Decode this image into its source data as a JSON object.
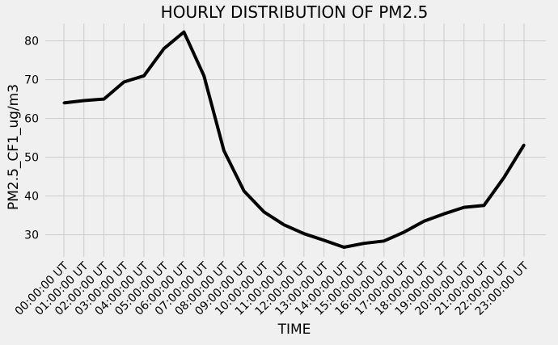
{
  "chart_data": {
    "type": "line",
    "title": "HOURLY DISTRIBUTION OF PM2.5",
    "xlabel": "TIME",
    "ylabel": "PM2.5_CF1_ug/m3",
    "categories": [
      "00:00:00 UT",
      "01:00:00 UT",
      "02:00:00 UT",
      "03:00:00 UT",
      "04:00:00 UT",
      "05:00:00 UT",
      "06:00:00 UT",
      "07:00:00 UT",
      "08:00:00 UT",
      "09:00:00 UT",
      "10:00:00 UT",
      "11:00:00 UT",
      "12:00:00 UT",
      "13:00:00 UT",
      "14:00:00 UT",
      "15:00:00 UT",
      "16:00:00 UT",
      "17:00:00 UT",
      "18:00:00 UT",
      "19:00:00 UT",
      "20:00:00 UT",
      "21:00:00 UT",
      "22:00:00 UT",
      "23:00:00 UT"
    ],
    "series": [
      {
        "values": [
          64.0,
          64.6,
          65.0,
          69.4,
          71.0,
          78.0,
          82.3,
          71.0,
          51.7,
          41.3,
          35.9,
          32.6,
          30.3,
          28.6,
          26.8,
          27.8,
          28.4,
          30.7,
          33.5,
          35.4,
          37.1,
          37.6,
          44.8,
          53.2
        ],
        "color": "#000000"
      }
    ],
    "ylim": [
      24.3,
      84.5
    ],
    "yticks": [
      30,
      40,
      50,
      60,
      70,
      80
    ],
    "grid": true
  }
}
